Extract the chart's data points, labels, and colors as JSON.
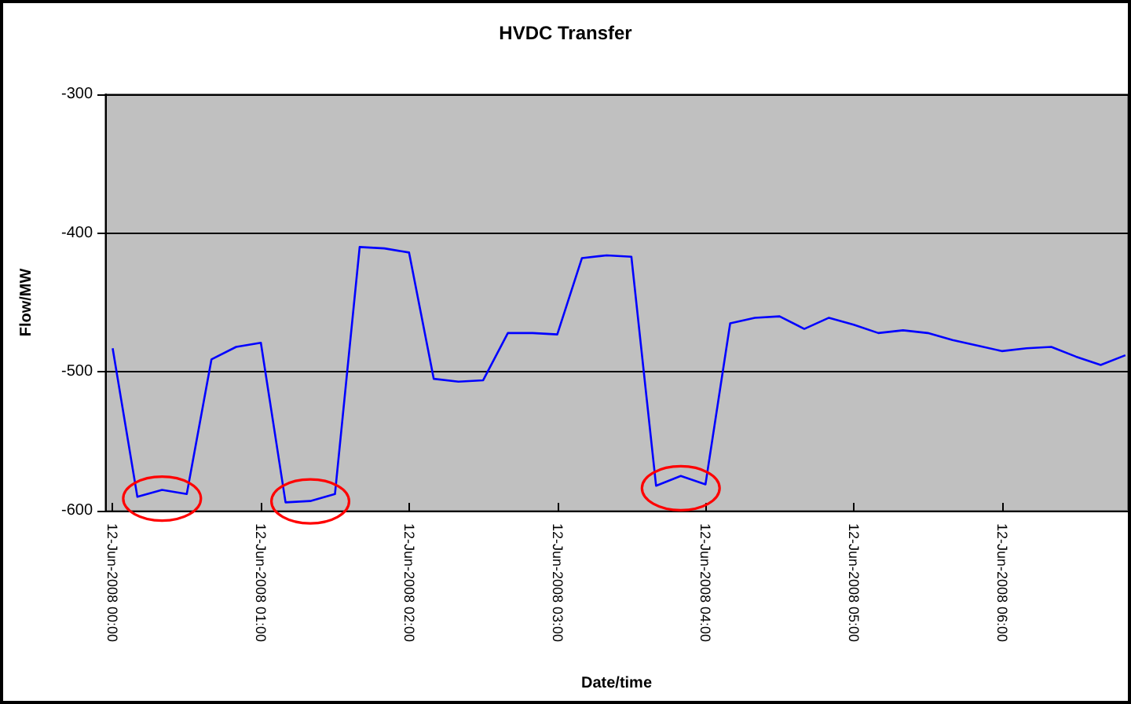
{
  "chart_data": {
    "type": "line",
    "title": "HVDC Transfer",
    "xlabel": "Date/time",
    "ylabel": "Flow/MW",
    "x": [
      "2008-06-12T00:00",
      "2008-06-12T00:10",
      "2008-06-12T00:20",
      "2008-06-12T00:30",
      "2008-06-12T00:40",
      "2008-06-12T00:50",
      "2008-06-12T01:00",
      "2008-06-12T01:10",
      "2008-06-12T01:20",
      "2008-06-12T01:30",
      "2008-06-12T01:40",
      "2008-06-12T01:50",
      "2008-06-12T02:00",
      "2008-06-12T02:10",
      "2008-06-12T02:20",
      "2008-06-12T02:30",
      "2008-06-12T02:40",
      "2008-06-12T02:50",
      "2008-06-12T03:00",
      "2008-06-12T03:10",
      "2008-06-12T03:20",
      "2008-06-12T03:30",
      "2008-06-12T03:40",
      "2008-06-12T03:50",
      "2008-06-12T04:00",
      "2008-06-12T04:10",
      "2008-06-12T04:20",
      "2008-06-12T04:30",
      "2008-06-12T04:40",
      "2008-06-12T04:50",
      "2008-06-12T05:00",
      "2008-06-12T05:10",
      "2008-06-12T05:20",
      "2008-06-12T05:30",
      "2008-06-12T05:40",
      "2008-06-12T05:50",
      "2008-06-12T06:00",
      "2008-06-12T06:10",
      "2008-06-12T06:20",
      "2008-06-12T06:30",
      "2008-06-12T06:40",
      "2008-06-12T06:50"
    ],
    "series": [
      {
        "color": "#0000ff",
        "values": [
          -483,
          -590,
          -585,
          -588,
          -491,
          -482,
          -479,
          -594,
          -593,
          -588,
          -410,
          -411,
          -414,
          -505,
          -507,
          -506,
          -472,
          -472,
          -473,
          -418,
          -416,
          -417,
          -582,
          -575,
          -581,
          -465,
          -461,
          -460,
          -469,
          -461,
          -466,
          -472,
          -470,
          -472,
          -477,
          -481,
          -485,
          -483,
          -482,
          -489,
          -495,
          -488
        ]
      }
    ],
    "xlim": [
      "2008-06-11T23:57",
      "2008-06-12T06:51"
    ],
    "xticks": [
      {
        "value": "2008-06-12T00:00",
        "label": "12-Jun-2008 00:00"
      },
      {
        "value": "2008-06-12T01:00",
        "label": "12-Jun-2008 01:00"
      },
      {
        "value": "2008-06-12T02:00",
        "label": "12-Jun-2008 02:00"
      },
      {
        "value": "2008-06-12T03:00",
        "label": "12-Jun-2008 03:00"
      },
      {
        "value": "2008-06-12T04:00",
        "label": "12-Jun-2008 04:00"
      },
      {
        "value": "2008-06-12T05:00",
        "label": "12-Jun-2008 05:00"
      },
      {
        "value": "2008-06-12T06:00",
        "label": "12-Jun-2008 06:00"
      }
    ],
    "ylim": [
      -600,
      -300
    ],
    "yticks": [
      -600,
      -500,
      -400,
      -300
    ],
    "grid": "y",
    "marker": "none",
    "line_style": "solid"
  }
}
